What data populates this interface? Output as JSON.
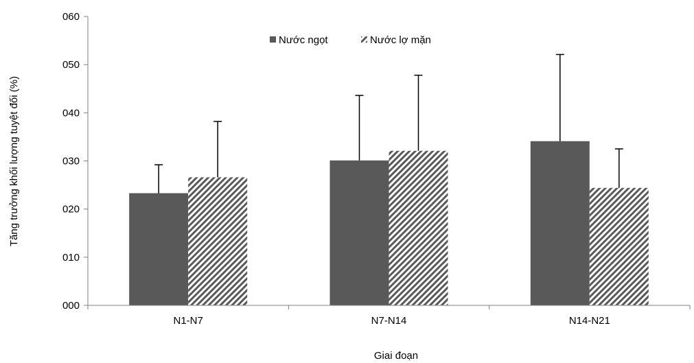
{
  "chart_data": {
    "type": "bar",
    "title": "",
    "xlabel": "Giai đoạn",
    "ylabel": "Tăng trưởng khối lượng tuyệt đối (%)",
    "categories": [
      "N1-N7",
      "N7-N14",
      "N14-N21"
    ],
    "ylim": [
      0,
      60
    ],
    "yticks": [
      0,
      10,
      20,
      30,
      40,
      50,
      60
    ],
    "ytick_labels": [
      "000",
      "010",
      "020",
      "030",
      "040",
      "050",
      "060"
    ],
    "grid": false,
    "legend_position": "top-center",
    "series": [
      {
        "name": "Nước ngọt",
        "color": "#595959",
        "pattern": "solid",
        "values": [
          23.3,
          30.1,
          34.1
        ],
        "error": [
          5.9,
          13.5,
          18.0
        ]
      },
      {
        "name": "Nước lợ mặn",
        "color": "#595959",
        "pattern": "diagonal-stripes",
        "values": [
          26.6,
          32.1,
          24.4
        ],
        "error": [
          11.6,
          15.7,
          8.1
        ]
      }
    ]
  }
}
